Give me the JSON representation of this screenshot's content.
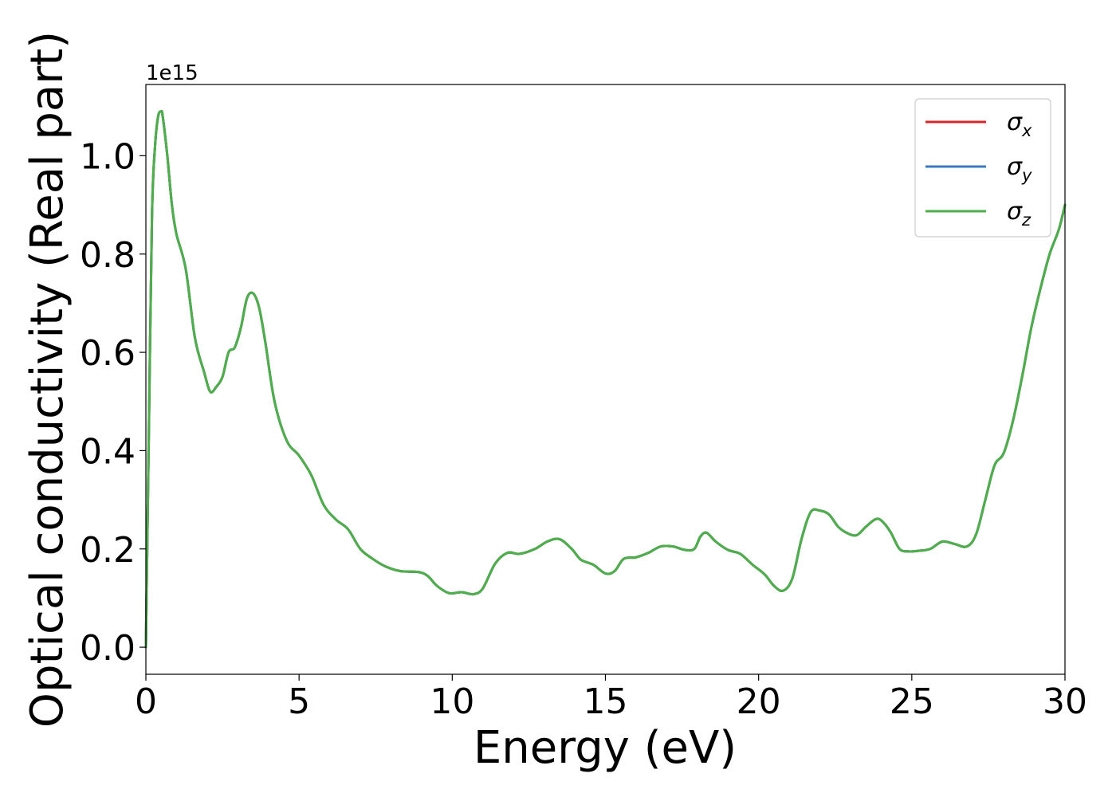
{
  "chart_data": {
    "type": "line",
    "xlabel": "Energy (eV)",
    "ylabel": "Optical conductivity (Real part)",
    "y_offset_label": "1e15",
    "y_scale": 1000000000000000.0,
    "xlim": [
      0,
      30
    ],
    "ylim": [
      -0.055,
      1.145
    ],
    "x_ticks": [
      0,
      5,
      10,
      15,
      20,
      25,
      30
    ],
    "x_tick_labels": [
      "0",
      "5",
      "10",
      "15",
      "20",
      "25",
      "30"
    ],
    "y_ticks": [
      0.0,
      0.2,
      0.4,
      0.6,
      0.8,
      1.0
    ],
    "y_tick_labels": [
      "0.0",
      "0.2",
      "0.4",
      "0.6",
      "0.8",
      "1.0"
    ],
    "grid": false,
    "legend_position": "top-right",
    "x": [
      0,
      0.1,
      0.2,
      0.3,
      0.4,
      0.5,
      0.55,
      0.7,
      0.85,
      1.0,
      1.3,
      1.6,
      1.9,
      2.1,
      2.3,
      2.5,
      2.7,
      2.9,
      3.1,
      3.3,
      3.5,
      3.7,
      3.9,
      4.2,
      4.6,
      5.0,
      5.4,
      5.8,
      6.2,
      6.6,
      7.0,
      7.4,
      7.8,
      8.3,
      8.9,
      9.2,
      9.5,
      9.9,
      10.3,
      10.7,
      11.0,
      11.4,
      11.8,
      12.2,
      12.7,
      13.1,
      13.5,
      13.9,
      14.2,
      14.6,
      15.0,
      15.3,
      15.6,
      16.0,
      16.4,
      16.8,
      17.2,
      17.6,
      17.9,
      18.1,
      18.3,
      18.6,
      19.0,
      19.4,
      19.8,
      20.2,
      20.5,
      20.8,
      21.1,
      21.4,
      21.7,
      22.0,
      22.3,
      22.6,
      22.9,
      23.2,
      23.5,
      23.8,
      24.0,
      24.3,
      24.6,
      24.9,
      25.2,
      25.6,
      26.0,
      26.4,
      26.8,
      27.1,
      27.4,
      27.7,
      28.0,
      28.3,
      28.6,
      28.9,
      29.2,
      29.5,
      29.8,
      30.0
    ],
    "series": [
      {
        "name": "σx",
        "color": "#d62728",
        "values": [
          0.0,
          0.45,
          0.88,
          1.02,
          1.08,
          1.09,
          1.08,
          1.0,
          0.9,
          0.84,
          0.77,
          0.63,
          0.56,
          0.52,
          0.53,
          0.55,
          0.6,
          0.61,
          0.65,
          0.71,
          0.72,
          0.69,
          0.62,
          0.5,
          0.42,
          0.39,
          0.35,
          0.29,
          0.26,
          0.24,
          0.2,
          0.18,
          0.165,
          0.155,
          0.153,
          0.145,
          0.125,
          0.11,
          0.112,
          0.108,
          0.12,
          0.17,
          0.192,
          0.19,
          0.2,
          0.215,
          0.22,
          0.2,
          0.178,
          0.168,
          0.15,
          0.155,
          0.18,
          0.183,
          0.192,
          0.205,
          0.205,
          0.198,
          0.2,
          0.225,
          0.233,
          0.215,
          0.198,
          0.19,
          0.168,
          0.148,
          0.125,
          0.115,
          0.14,
          0.22,
          0.275,
          0.278,
          0.27,
          0.245,
          0.232,
          0.228,
          0.245,
          0.26,
          0.258,
          0.235,
          0.2,
          0.195,
          0.196,
          0.2,
          0.215,
          0.21,
          0.205,
          0.23,
          0.3,
          0.37,
          0.395,
          0.46,
          0.55,
          0.65,
          0.73,
          0.8,
          0.85,
          0.9
        ]
      },
      {
        "name": "σy",
        "color": "#3a7bbf",
        "values": [
          0.0,
          0.45,
          0.88,
          1.02,
          1.08,
          1.09,
          1.08,
          1.0,
          0.9,
          0.84,
          0.77,
          0.63,
          0.56,
          0.52,
          0.53,
          0.55,
          0.6,
          0.61,
          0.65,
          0.71,
          0.72,
          0.69,
          0.62,
          0.5,
          0.42,
          0.39,
          0.35,
          0.29,
          0.26,
          0.24,
          0.2,
          0.18,
          0.165,
          0.155,
          0.153,
          0.145,
          0.125,
          0.11,
          0.112,
          0.108,
          0.12,
          0.17,
          0.192,
          0.19,
          0.2,
          0.215,
          0.22,
          0.2,
          0.178,
          0.168,
          0.15,
          0.155,
          0.18,
          0.183,
          0.192,
          0.205,
          0.205,
          0.198,
          0.2,
          0.225,
          0.233,
          0.215,
          0.198,
          0.19,
          0.168,
          0.148,
          0.125,
          0.115,
          0.14,
          0.22,
          0.275,
          0.278,
          0.27,
          0.245,
          0.232,
          0.228,
          0.245,
          0.26,
          0.258,
          0.235,
          0.2,
          0.195,
          0.196,
          0.2,
          0.215,
          0.21,
          0.205,
          0.23,
          0.3,
          0.37,
          0.395,
          0.46,
          0.55,
          0.65,
          0.73,
          0.8,
          0.85,
          0.9
        ]
      },
      {
        "name": "σz",
        "color": "#4daf4a",
        "values": [
          0.0,
          0.45,
          0.88,
          1.02,
          1.08,
          1.09,
          1.08,
          1.0,
          0.9,
          0.84,
          0.77,
          0.63,
          0.56,
          0.52,
          0.53,
          0.55,
          0.6,
          0.61,
          0.65,
          0.71,
          0.72,
          0.69,
          0.62,
          0.5,
          0.42,
          0.39,
          0.35,
          0.29,
          0.26,
          0.24,
          0.2,
          0.18,
          0.165,
          0.155,
          0.153,
          0.145,
          0.125,
          0.11,
          0.112,
          0.108,
          0.12,
          0.17,
          0.192,
          0.19,
          0.2,
          0.215,
          0.22,
          0.2,
          0.178,
          0.168,
          0.15,
          0.155,
          0.18,
          0.183,
          0.192,
          0.205,
          0.205,
          0.198,
          0.2,
          0.225,
          0.233,
          0.215,
          0.198,
          0.19,
          0.168,
          0.148,
          0.125,
          0.115,
          0.14,
          0.22,
          0.275,
          0.278,
          0.27,
          0.245,
          0.232,
          0.228,
          0.245,
          0.26,
          0.258,
          0.235,
          0.2,
          0.195,
          0.196,
          0.2,
          0.215,
          0.21,
          0.205,
          0.23,
          0.3,
          0.37,
          0.395,
          0.46,
          0.55,
          0.65,
          0.73,
          0.8,
          0.85,
          0.9
        ]
      }
    ],
    "legend": [
      {
        "symbol": "σ",
        "subscript": "x"
      },
      {
        "symbol": "σ",
        "subscript": "y"
      },
      {
        "symbol": "σ",
        "subscript": "z"
      }
    ]
  }
}
